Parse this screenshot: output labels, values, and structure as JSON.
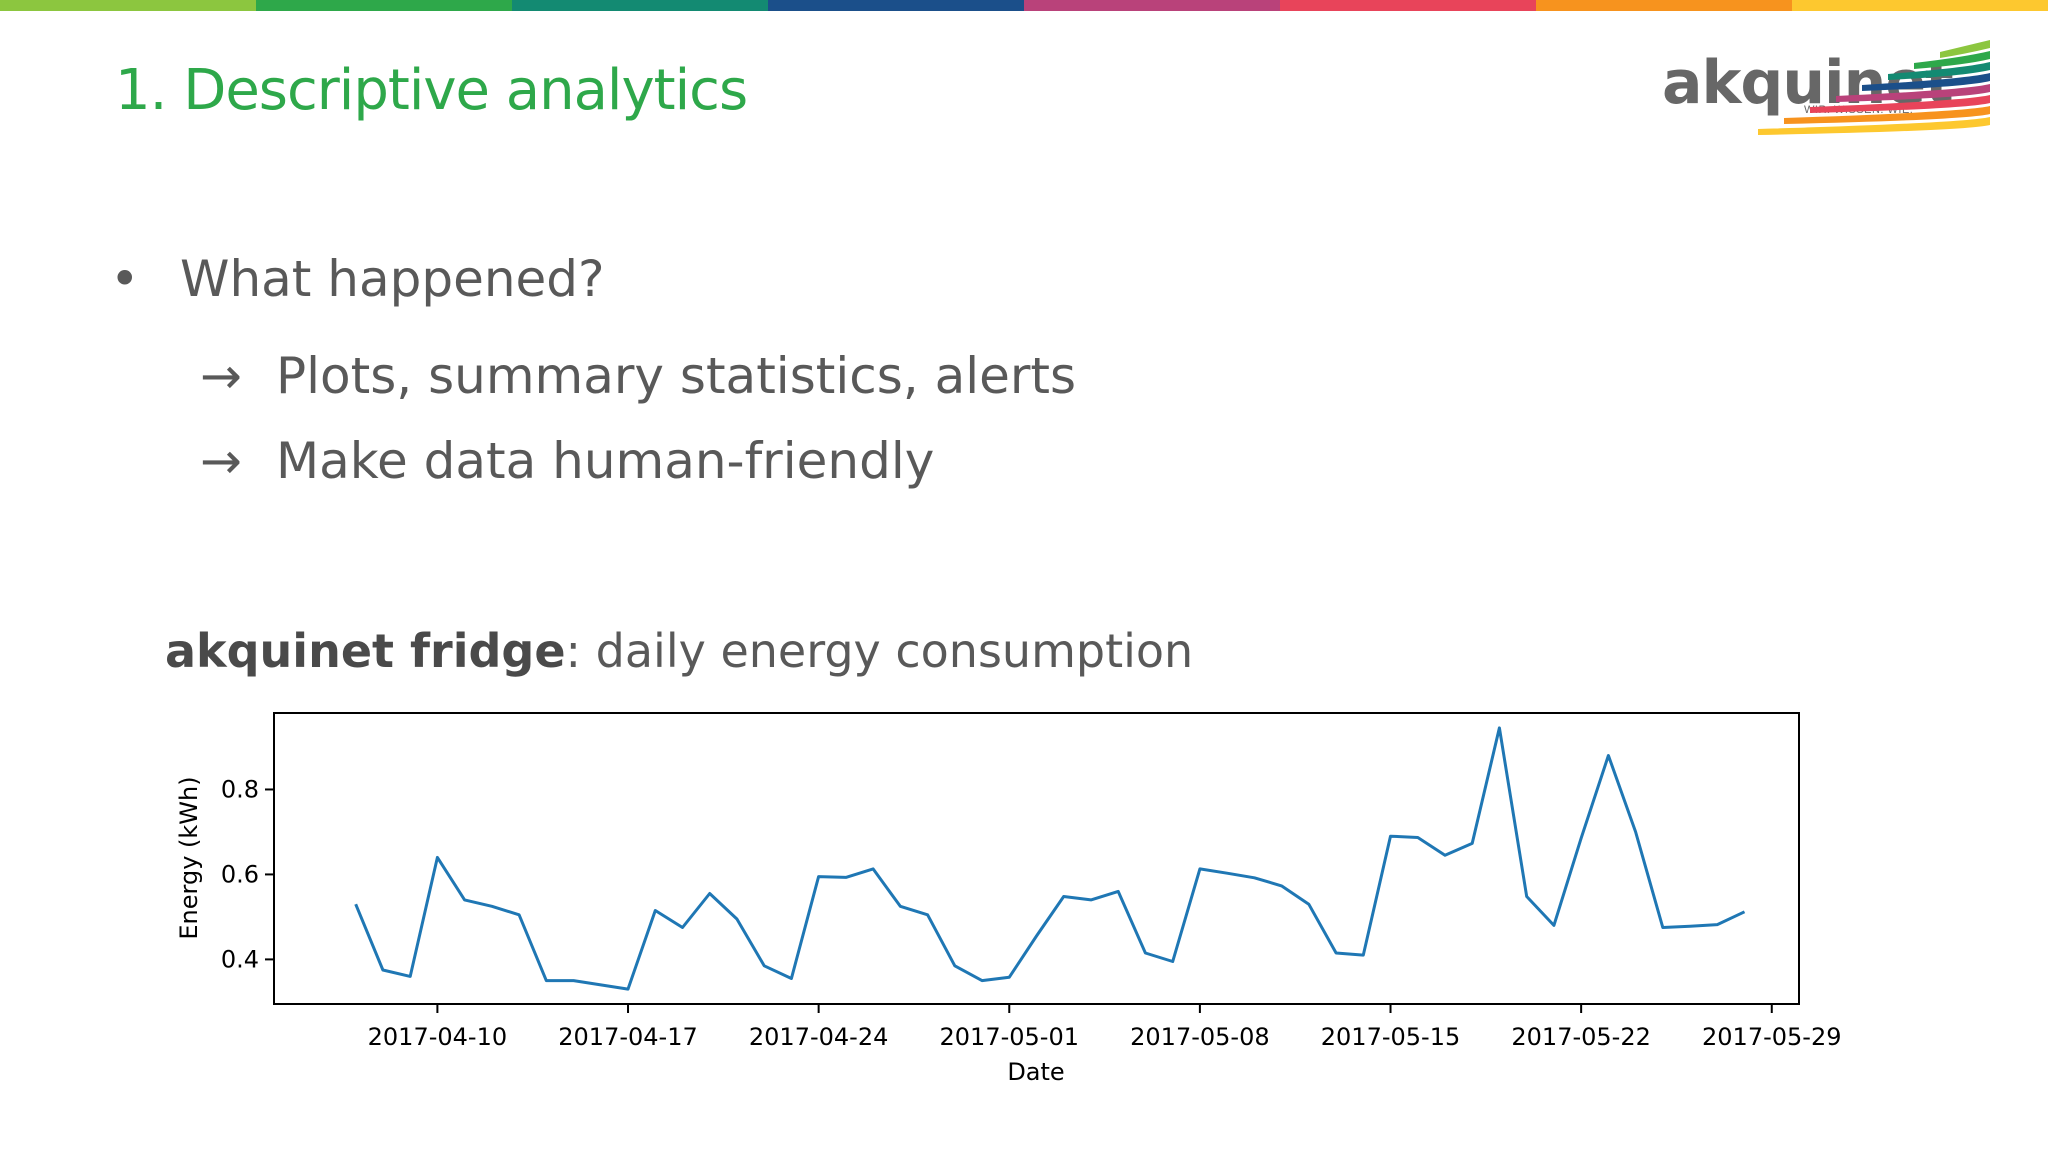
{
  "slide": {
    "title": "1. Descriptive analytics",
    "bullet": "What happened?",
    "sub_items": [
      "Plots, summary statistics, alerts",
      "Make data human-friendly"
    ],
    "arrow_glyph": "→",
    "bullet_glyph": "•"
  },
  "logo": {
    "word": "akquinet",
    "tagline": "WIR. WISSEN. WIE.",
    "colors": [
      "#8cc63f",
      "#2ea84a",
      "#138a72",
      "#1b4f8a",
      "#b9427a",
      "#e8445a",
      "#f7931e",
      "#fdc82f"
    ]
  },
  "top_bar_colors": [
    "#8cc63f",
    "#2ea84a",
    "#138a72",
    "#1b4f8a",
    "#b9427a",
    "#e8445a",
    "#f7931e",
    "#fdc82f"
  ],
  "chart_heading": {
    "bold": "akquinet fridge",
    "rest": ": daily energy consumption"
  },
  "chart_data": {
    "type": "line",
    "title": "",
    "xlabel": "Date",
    "ylabel": "Energy (kWh)",
    "line_color": "#1f77b4",
    "x_ticks": [
      "2017-04-10",
      "2017-04-17",
      "2017-04-24",
      "2017-05-01",
      "2017-05-08",
      "2017-05-15",
      "2017-05-22",
      "2017-05-29"
    ],
    "y_ticks": [
      "0.4",
      "0.6",
      "0.8"
    ],
    "ylim": [
      0.295,
      0.98
    ],
    "xlim": [
      "2017-04-04",
      "2017-05-30"
    ],
    "x": [
      "2017-04-07",
      "2017-04-08",
      "2017-04-09",
      "2017-04-10",
      "2017-04-11",
      "2017-04-12",
      "2017-04-13",
      "2017-04-14",
      "2017-04-15",
      "2017-04-16",
      "2017-04-17",
      "2017-04-18",
      "2017-04-19",
      "2017-04-20",
      "2017-04-21",
      "2017-04-22",
      "2017-04-23",
      "2017-04-24",
      "2017-04-25",
      "2017-04-26",
      "2017-04-27",
      "2017-04-28",
      "2017-04-29",
      "2017-04-30",
      "2017-05-01",
      "2017-05-02",
      "2017-05-03",
      "2017-05-04",
      "2017-05-05",
      "2017-05-06",
      "2017-05-07",
      "2017-05-08",
      "2017-05-09",
      "2017-05-10",
      "2017-05-11",
      "2017-05-12",
      "2017-05-13",
      "2017-05-14",
      "2017-05-15",
      "2017-05-16",
      "2017-05-17",
      "2017-05-18",
      "2017-05-19",
      "2017-05-20",
      "2017-05-21",
      "2017-05-22",
      "2017-05-23",
      "2017-05-24",
      "2017-05-25",
      "2017-05-26",
      "2017-05-27",
      "2017-05-28"
    ],
    "y": [
      0.53,
      0.375,
      0.36,
      0.64,
      0.54,
      0.525,
      0.505,
      0.35,
      0.35,
      0.34,
      0.33,
      0.515,
      0.475,
      0.555,
      0.495,
      0.385,
      0.355,
      0.595,
      0.593,
      0.613,
      0.525,
      0.505,
      0.385,
      0.35,
      0.358,
      0.455,
      0.548,
      0.54,
      0.56,
      0.415,
      0.395,
      0.613,
      0.603,
      0.592,
      0.573,
      0.53,
      0.415,
      0.41,
      0.69,
      0.687,
      0.645,
      0.673,
      0.945,
      0.548,
      0.48,
      0.685,
      0.88,
      0.7,
      0.475,
      0.478,
      0.482,
      0.512
    ]
  }
}
